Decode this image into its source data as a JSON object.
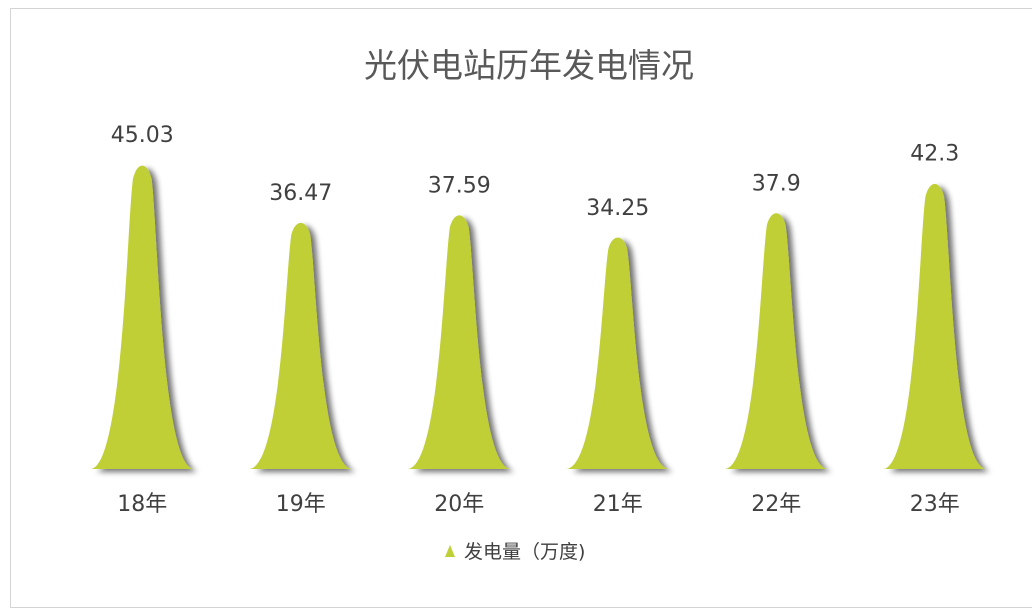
{
  "chart_data": {
    "type": "bar",
    "title": "光伏电站历年发电情况",
    "categories": [
      "18年",
      "19年",
      "20年",
      "21年",
      "22年",
      "23年"
    ],
    "series": [
      {
        "name": "发电量（万度)",
        "values": [
          45.03,
          36.47,
          37.59,
          34.25,
          37.9,
          42.3
        ],
        "labels": [
          "45.03",
          "36.47",
          "37.59",
          "34.25",
          "37.9",
          "42.3"
        ]
      }
    ],
    "bar_shape": "peak",
    "ylim": [
      0,
      50
    ],
    "grid": false,
    "legend_position": "bottom",
    "colors": {
      "bar": "#bfcf36",
      "shadow": "#777777",
      "border": "#d4d4d4",
      "text": "#404040",
      "title": "#595959"
    }
  }
}
